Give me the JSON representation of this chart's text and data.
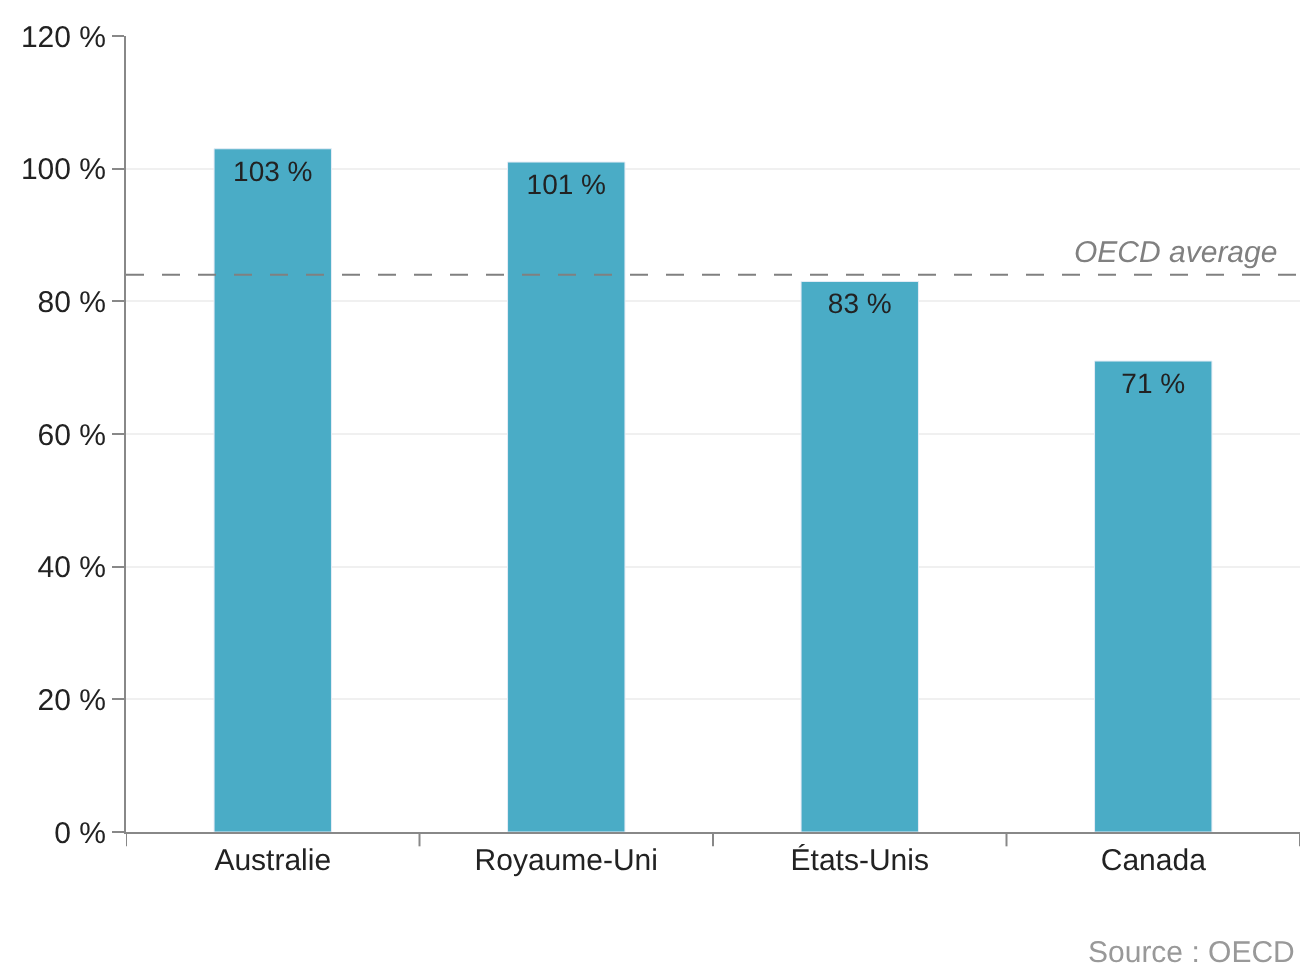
{
  "chart_data": {
    "type": "bar",
    "categories": [
      "Australie",
      "Royaume-Uni",
      "États-Unis",
      "Canada"
    ],
    "values": [
      103,
      101,
      83,
      71
    ],
    "value_labels": [
      "103 %",
      "101 %",
      "83 %",
      "71 %"
    ],
    "color": "#4aacc6",
    "ylim": [
      0,
      120
    ],
    "yticks": [
      {
        "value": 0,
        "label": "0 %"
      },
      {
        "value": 20,
        "label": "20 %"
      },
      {
        "value": 40,
        "label": "40 %"
      },
      {
        "value": 60,
        "label": "60 %"
      },
      {
        "value": 80,
        "label": "80 %"
      },
      {
        "value": 100,
        "label": "100 %"
      },
      {
        "value": 120,
        "label": "120 %"
      }
    ],
    "grid": "y",
    "ref_lines": [
      {
        "axis": "y",
        "value": 84,
        "label": "OECD average",
        "color": "#808080",
        "line_style": "dashed"
      }
    ],
    "annotations": [
      "Source : OECD"
    ]
  }
}
